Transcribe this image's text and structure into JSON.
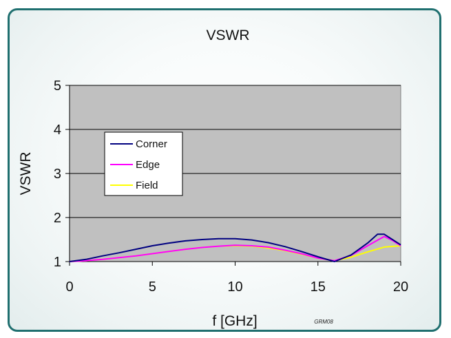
{
  "chart_data": {
    "type": "line",
    "title": "VSWR",
    "xlabel": "f [GHz]",
    "ylabel": "VSWR",
    "xlim": [
      0,
      20
    ],
    "ylim": [
      1,
      5
    ],
    "xticks": [
      0,
      5,
      10,
      15,
      20
    ],
    "yticks": [
      1,
      2,
      3,
      4,
      5
    ],
    "plot_background": "#c0c0c0",
    "grid": "horizontal",
    "legend_position": "left",
    "series": [
      {
        "name": "Corner",
        "color": "#000080",
        "x": [
          0,
          1,
          2,
          3,
          4,
          5,
          6,
          7,
          8,
          9,
          10,
          11,
          12,
          13,
          14,
          15,
          16,
          17,
          18,
          18.6,
          19,
          19.5,
          20
        ],
        "y": [
          1.0,
          1.05,
          1.13,
          1.2,
          1.28,
          1.36,
          1.42,
          1.47,
          1.5,
          1.52,
          1.52,
          1.49,
          1.43,
          1.34,
          1.23,
          1.11,
          1.0,
          1.15,
          1.42,
          1.62,
          1.62,
          1.5,
          1.38
        ]
      },
      {
        "name": "Edge",
        "color": "#ff00ff",
        "x": [
          0,
          1,
          2,
          3,
          4,
          5,
          6,
          7,
          8,
          9,
          10,
          11,
          12,
          13,
          14,
          15,
          16,
          17,
          18,
          19,
          19.5,
          20
        ],
        "y": [
          1.0,
          1.02,
          1.05,
          1.09,
          1.13,
          1.18,
          1.23,
          1.28,
          1.32,
          1.35,
          1.37,
          1.36,
          1.33,
          1.26,
          1.18,
          1.08,
          1.02,
          1.14,
          1.36,
          1.57,
          1.48,
          1.36
        ]
      },
      {
        "name": "Field",
        "color": "#ffff00",
        "x": [
          0,
          1,
          2,
          3,
          4,
          5,
          6,
          7,
          8,
          9,
          10,
          11,
          12,
          13,
          14,
          15,
          16,
          17,
          18,
          19,
          20
        ],
        "y": [
          1.0,
          1.02,
          1.05,
          1.09,
          1.13,
          1.18,
          1.23,
          1.28,
          1.32,
          1.35,
          1.36,
          1.35,
          1.31,
          1.25,
          1.17,
          1.08,
          1.02,
          1.1,
          1.22,
          1.33,
          1.36
        ]
      }
    ]
  },
  "signature": "GRM08"
}
